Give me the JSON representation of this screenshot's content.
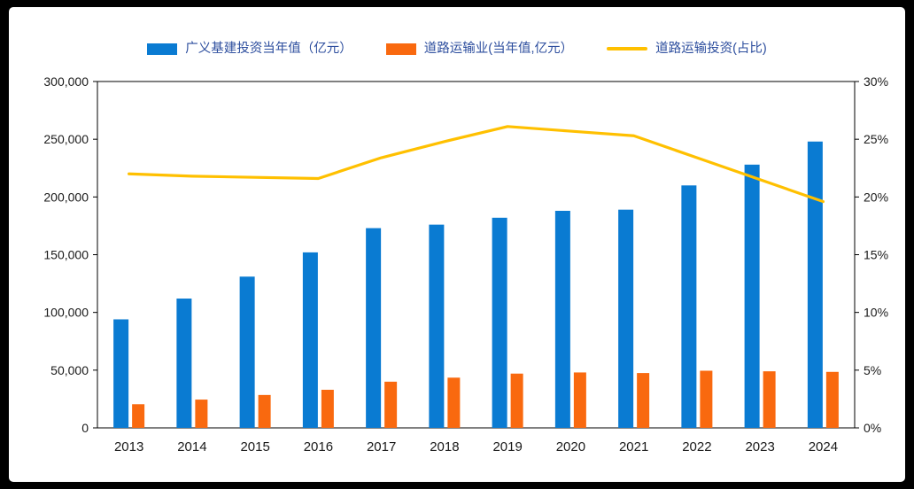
{
  "colors": {
    "frame": "#000000",
    "canvas": "#FFFFFF",
    "axis": "#000000",
    "tick_text": "#1A1A1A",
    "legend_text": "#2D4E9E"
  },
  "chart_data": {
    "type": "combo-bar-line",
    "title": "",
    "legend_position": "top",
    "grid": false,
    "categories": [
      "2013",
      "2014",
      "2015",
      "2016",
      "2017",
      "2018",
      "2019",
      "2020",
      "2021",
      "2022",
      "2023",
      "2024"
    ],
    "series": [
      {
        "name": "广义基建投资当年值（亿元）",
        "type": "bar",
        "axis": "left",
        "color": "#0A7BD2",
        "values": [
          94000,
          112000,
          131000,
          152000,
          173000,
          176000,
          182000,
          188000,
          189000,
          210000,
          228000,
          248000
        ]
      },
      {
        "name": "道路运输业(当年值,亿元）",
        "type": "bar",
        "axis": "left",
        "color": "#F9690F",
        "values": [
          20500,
          24500,
          28500,
          33000,
          40000,
          43500,
          47000,
          48000,
          47500,
          49500,
          49000,
          48500
        ]
      },
      {
        "name": "道路运输投资(占比)",
        "type": "line",
        "axis": "right",
        "color": "#FFC000",
        "values": [
          22.0,
          21.8,
          21.7,
          21.6,
          23.4,
          24.8,
          26.1,
          25.7,
          25.3,
          23.4,
          21.5,
          19.6
        ]
      }
    ],
    "left_axis": {
      "min": 0,
      "max": 300000,
      "step": 50000,
      "tick_labels": [
        "0",
        "50,000",
        "100,000",
        "150,000",
        "200,000",
        "250,000",
        "300,000"
      ]
    },
    "right_axis": {
      "min": 0,
      "max": 30,
      "step": 5,
      "tick_labels": [
        "0%",
        "5%",
        "10%",
        "15%",
        "20%",
        "25%",
        "30%"
      ]
    }
  }
}
